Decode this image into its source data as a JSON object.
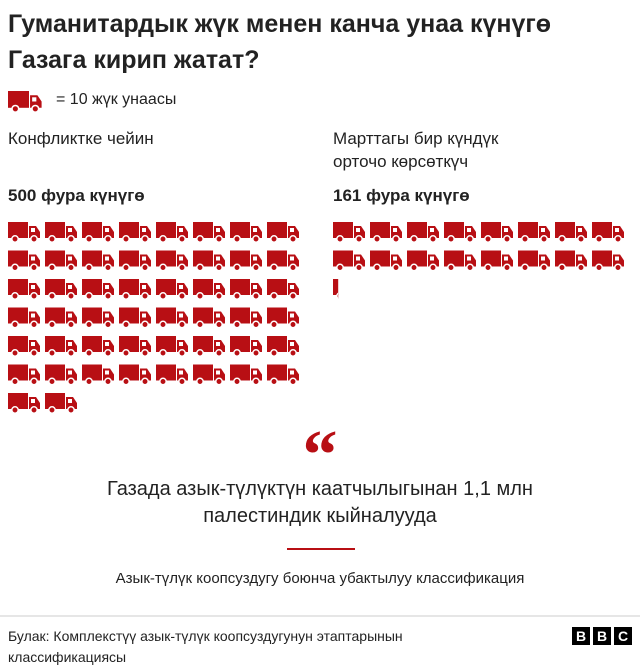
{
  "chart_data": {
    "type": "pictogram",
    "title": "Гуманитардык жүк менен канча унаа күнүгө Газага кирип жатат?",
    "unit": {
      "value": 10,
      "label": "= 10 жүк унаасы"
    },
    "color": "#b80f14",
    "series": [
      {
        "name": "Конфликтке чейин",
        "values": [
          500
        ],
        "value_labels": [
          "500 фура күнүгө"
        ]
      },
      {
        "name": "Марттагы бир күндүк орточо көрсөткүч",
        "values": [
          161
        ],
        "value_labels": [
          "161 фура күнүгө"
        ]
      }
    ],
    "quote": "Газада азык-түлүктүн каатчылыгынан 1,1 млн палестиндик кыйналууда",
    "quote_source": "Азык-түлүк коопсуздугу боюнча убактылуу классификация",
    "source": "Булак: Комплекстүү азык-түлүк  коопсуздугунун этаптарынын классификациясы",
    "logo": [
      "B",
      "B",
      "C"
    ]
  }
}
